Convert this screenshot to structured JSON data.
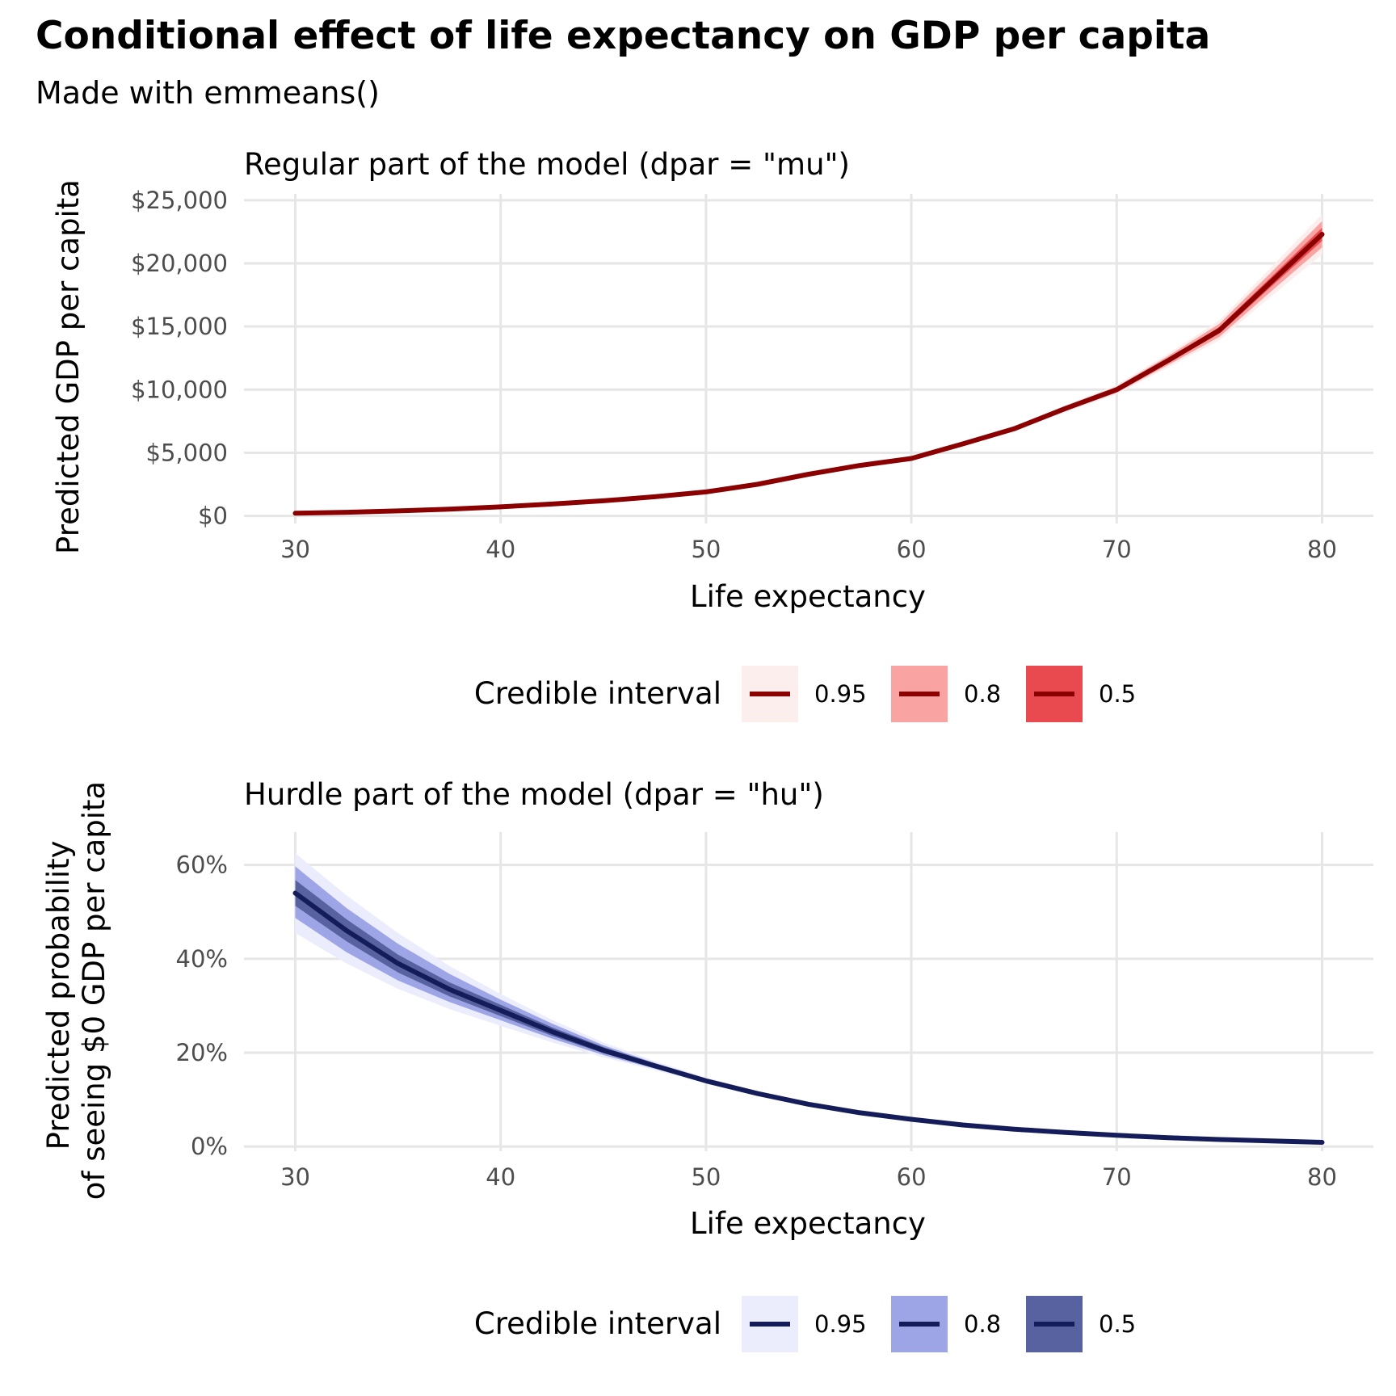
{
  "title": "Conditional effect of life expectancy on GDP per capita",
  "subtitle": "Made with emmeans()",
  "colors": {
    "mu": {
      "line": "#8b0000",
      "ci95": "#fdeeee",
      "ci80": "#f9a3a3",
      "ci50": "#e84a4f"
    },
    "hu": {
      "line": "#141d5a",
      "ci95": "#ebedfd",
      "ci80": "#9ea5e6",
      "ci50": "#5962a0"
    },
    "grid": "#e6e6e6"
  },
  "chart_data": [
    {
      "type": "line",
      "title": "Regular part of the model (dpar = \"mu\")",
      "xlabel": "Life expectancy",
      "ylabel": "Predicted GDP per capita",
      "xlim": [
        27.5,
        82.5
      ],
      "ylim": [
        -600,
        25500
      ],
      "x_ticks": [
        30,
        40,
        50,
        60,
        70,
        80
      ],
      "x_tick_labels": [
        "30",
        "40",
        "50",
        "60",
        "70",
        "80"
      ],
      "y_ticks": [
        0,
        5000,
        10000,
        15000,
        20000,
        25000
      ],
      "y_tick_labels": [
        "$0",
        "$5,000",
        "$10,000",
        "$15,000",
        "$20,000",
        "$25,000"
      ],
      "grid": true,
      "legend_position": "bottom",
      "legend_title": "Credible interval",
      "legend_labels": [
        "0.95",
        "0.8",
        "0.5"
      ],
      "series": [
        {
          "x": [
            30,
            32.5,
            35,
            37.5,
            40,
            42.5,
            45,
            47.5,
            50,
            52.5,
            55,
            57.5,
            60,
            62.5,
            65,
            67.5,
            70,
            72.5,
            75,
            77.5,
            80
          ],
          "y": [
            210,
            290,
            400,
            540,
            720,
            940,
            1200,
            1520,
            1900,
            2500,
            3300,
            4000,
            4550,
            5700,
            6900,
            8500,
            10000,
            12300,
            14700,
            18500,
            22300
          ],
          "ci95_lower": [
            200,
            280,
            385,
            520,
            695,
            910,
            1165,
            1480,
            1860,
            2450,
            3230,
            3920,
            4450,
            5560,
            6700,
            8220,
            9630,
            11750,
            13900,
            17350,
            20700
          ],
          "ci95_upper": [
            220,
            300,
            415,
            560,
            745,
            970,
            1235,
            1560,
            1940,
            2550,
            3370,
            4080,
            4650,
            5840,
            7100,
            8780,
            10370,
            12850,
            15500,
            19650,
            23900
          ],
          "ci80_lower": [
            203,
            283,
            390,
            527,
            703,
            920,
            1177,
            1494,
            1874,
            2467,
            3254,
            3948,
            4485,
            5609,
            6770,
            8318,
            9760,
            11942,
            14180,
            17752,
            21260
          ],
          "ci80_upper": [
            217,
            297,
            410,
            553,
            737,
            960,
            1223,
            1546,
            1926,
            2533,
            3346,
            4052,
            4615,
            5791,
            7030,
            8682,
            10240,
            12658,
            15220,
            19248,
            23340
          ],
          "ci50_lower": [
            206,
            286,
            395,
            533,
            711,
            930,
            1189,
            1507,
            1887,
            2483,
            3277,
            3974,
            4517,
            5653,
            6833,
            8407,
            9877,
            12123,
            14440,
            18127,
            21780
          ],
          "ci50_upper": [
            214,
            294,
            405,
            547,
            729,
            950,
            1211,
            1533,
            1913,
            2517,
            3323,
            4026,
            4583,
            5747,
            6967,
            8593,
            10123,
            12477,
            14960,
            18873,
            22820
          ]
        }
      ]
    },
    {
      "type": "line",
      "title": "Hurdle part of the model (dpar = \"hu\")",
      "xlabel": "Life expectancy",
      "ylabel": "Predicted probability\nof seeing $0 GDP per capita",
      "xlim": [
        27.5,
        82.5
      ],
      "ylim": [
        -0.01,
        0.67
      ],
      "x_ticks": [
        30,
        40,
        50,
        60,
        70,
        80
      ],
      "x_tick_labels": [
        "30",
        "40",
        "50",
        "60",
        "70",
        "80"
      ],
      "y_ticks": [
        0,
        0.2,
        0.4,
        0.6
      ],
      "y_tick_labels": [
        "0%",
        "20%",
        "40%",
        "60%"
      ],
      "grid": true,
      "legend_position": "bottom",
      "legend_title": "Credible interval",
      "legend_labels": [
        "0.95",
        "0.8",
        "0.5"
      ],
      "series": [
        {
          "x": [
            30,
            32.5,
            35,
            37.5,
            40,
            42.5,
            45,
            47.5,
            50,
            52.5,
            55,
            57.5,
            60,
            62.5,
            65,
            67.5,
            70,
            72.5,
            75,
            77.5,
            80
          ],
          "y": [
            0.54,
            0.46,
            0.39,
            0.335,
            0.29,
            0.245,
            0.205,
            0.172,
            0.14,
            0.113,
            0.09,
            0.072,
            0.058,
            0.046,
            0.037,
            0.03,
            0.024,
            0.019,
            0.015,
            0.012,
            0.009
          ],
          "ci95_lower": [
            0.455,
            0.39,
            0.336,
            0.293,
            0.257,
            0.222,
            0.19,
            0.163,
            0.134,
            0.108,
            0.085,
            0.067,
            0.053,
            0.041,
            0.032,
            0.025,
            0.019,
            0.015,
            0.011,
            0.008,
            0.006
          ],
          "ci95_upper": [
            0.625,
            0.535,
            0.455,
            0.385,
            0.325,
            0.27,
            0.222,
            0.182,
            0.147,
            0.118,
            0.095,
            0.077,
            0.063,
            0.051,
            0.042,
            0.035,
            0.029,
            0.024,
            0.019,
            0.016,
            0.013
          ],
          "ci80_lower": [
            0.487,
            0.414,
            0.354,
            0.308,
            0.269,
            0.23,
            0.195,
            0.166,
            0.136,
            0.11,
            0.087,
            0.069,
            0.055,
            0.043,
            0.034,
            0.027,
            0.021,
            0.016,
            0.012,
            0.009,
            0.007
          ],
          "ci80_upper": [
            0.597,
            0.508,
            0.432,
            0.368,
            0.313,
            0.262,
            0.216,
            0.178,
            0.145,
            0.117,
            0.094,
            0.076,
            0.062,
            0.05,
            0.041,
            0.034,
            0.028,
            0.023,
            0.018,
            0.015,
            0.012
          ],
          "ci50_lower": [
            0.513,
            0.437,
            0.371,
            0.32,
            0.278,
            0.236,
            0.199,
            0.168,
            0.137,
            0.111,
            0.088,
            0.07,
            0.056,
            0.044,
            0.035,
            0.028,
            0.022,
            0.017,
            0.013,
            0.01,
            0.007
          ],
          "ci50_upper": [
            0.568,
            0.484,
            0.409,
            0.35,
            0.302,
            0.254,
            0.212,
            0.176,
            0.143,
            0.116,
            0.093,
            0.075,
            0.061,
            0.049,
            0.04,
            0.033,
            0.027,
            0.022,
            0.017,
            0.014,
            0.011
          ]
        }
      ]
    }
  ]
}
